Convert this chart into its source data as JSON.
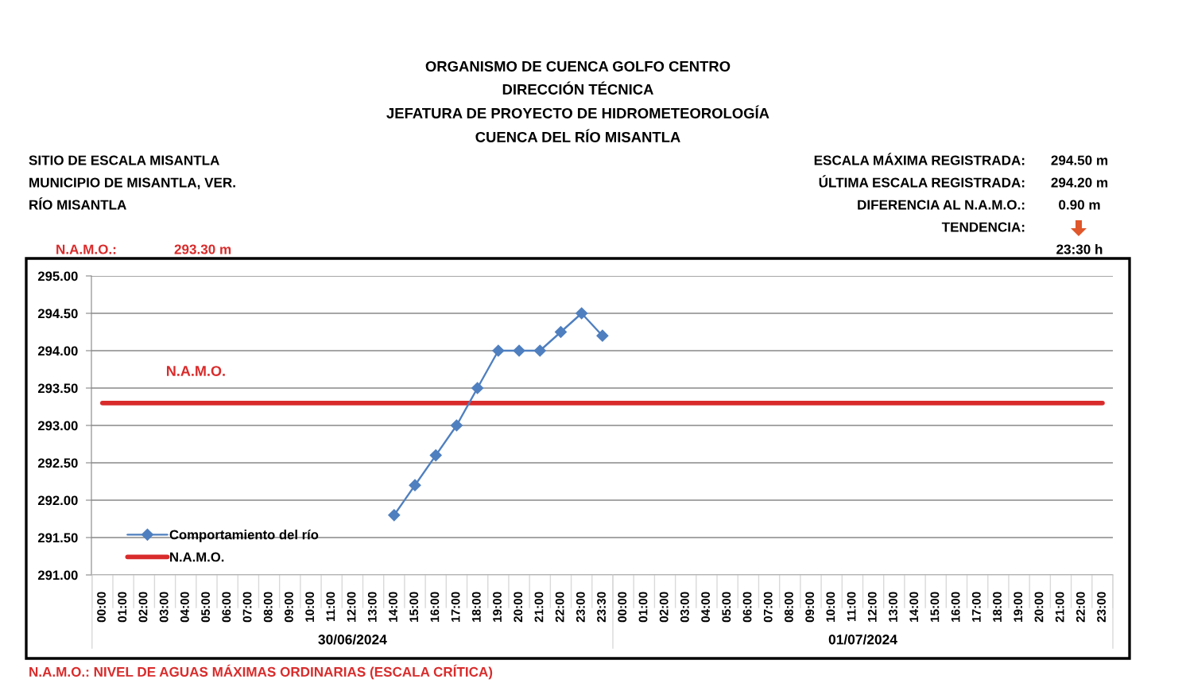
{
  "chart_data": {
    "type": "line",
    "title": "ORGANISMO DE CUENCA GOLFO CENTRO",
    "subtitle": "DIRECCIÓN TÉCNICA\nJEFATURA DE PROYECTO DE HIDROMETEOROLOGÍA\nCUENCA DEL RÍO MISANTLA",
    "categories": [
      "00:00",
      "01:00",
      "02:00",
      "03:00",
      "04:00",
      "05:00",
      "06:00",
      "07:00",
      "08:00",
      "09:00",
      "10:00",
      "11:00",
      "12:00",
      "13:00",
      "14:00",
      "15:00",
      "16:00",
      "17:00",
      "18:00",
      "19:00",
      "20:00",
      "21:00",
      "22:00",
      "23:00",
      "23:30",
      "00:00",
      "01:00",
      "02:00",
      "03:00",
      "04:00",
      "05:00",
      "06:00",
      "07:00",
      "08:00",
      "09:00",
      "10:00",
      "11:00",
      "12:00",
      "13:00",
      "14:00",
      "15:00",
      "16:00",
      "17:00",
      "18:00",
      "19:00",
      "20:00",
      "21:00",
      "22:00",
      "23:00"
    ],
    "series": [
      {
        "name": "Comportamiento del río",
        "color": "#4f7fbf",
        "marker": "diamond",
        "values": [
          null,
          null,
          null,
          null,
          null,
          null,
          null,
          null,
          null,
          null,
          null,
          null,
          null,
          null,
          291.8,
          292.2,
          292.6,
          293.0,
          293.5,
          294.0,
          294.0,
          294.0,
          294.25,
          294.5,
          294.2,
          null,
          null,
          null,
          null,
          null,
          null,
          null,
          null,
          null,
          null,
          null,
          null,
          null,
          null,
          null,
          null,
          null,
          null,
          null,
          null,
          null,
          null,
          null,
          null
        ]
      },
      {
        "name": "N.A.M.O.",
        "color": "#d92b2b",
        "marker": "none",
        "values": [
          293.3,
          293.3,
          293.3,
          293.3,
          293.3,
          293.3,
          293.3,
          293.3,
          293.3,
          293.3,
          293.3,
          293.3,
          293.3,
          293.3,
          293.3,
          293.3,
          293.3,
          293.3,
          293.3,
          293.3,
          293.3,
          293.3,
          293.3,
          293.3,
          293.3,
          293.3,
          293.3,
          293.3,
          293.3,
          293.3,
          293.3,
          293.3,
          293.3,
          293.3,
          293.3,
          293.3,
          293.3,
          293.3,
          293.3,
          293.3,
          293.3,
          293.3,
          293.3,
          293.3,
          293.3,
          293.3,
          293.3,
          293.3,
          293.3
        ]
      }
    ],
    "ylim": [
      291,
      295
    ],
    "yticks": [
      {
        "value": 291,
        "label": "291.00"
      },
      {
        "value": 291.5,
        "label": "291.50"
      },
      {
        "value": 292,
        "label": "292.00"
      },
      {
        "value": 292.5,
        "label": "292.50"
      },
      {
        "value": 293,
        "label": "293.00"
      },
      {
        "value": 293.5,
        "label": "293.50"
      },
      {
        "value": 294,
        "label": "294.00"
      },
      {
        "value": 294.5,
        "label": "294.50"
      },
      {
        "value": 295,
        "label": "295.00"
      }
    ],
    "grid": "y",
    "legend": "bottom left",
    "line_style": "solid",
    "annotations": [
      "SITIO DE ESCALA MISANTLA",
      "MUNICIPIO DE MISANTLA, VER.",
      "RÍO MISANTLA",
      "ESCALA MÁXIMA REGISTRADA:",
      "294.50 m",
      "ÚLTIMA ESCALA REGISTRADA:",
      "294.20 m",
      "DIFERENCIA AL N.A.M.O.:",
      "0.90 m",
      "TENDENCIA:",
      "23:30 h",
      "N.A.M.O.:",
      "293.30 m",
      "N.A.M.O.",
      "30/06/2024",
      "01/07/2024",
      "N.A.M.O.: NIVEL DE AGUAS MÁXIMAS ORDINARIAS (ESCALA CRÍTICA)"
    ]
  }
}
